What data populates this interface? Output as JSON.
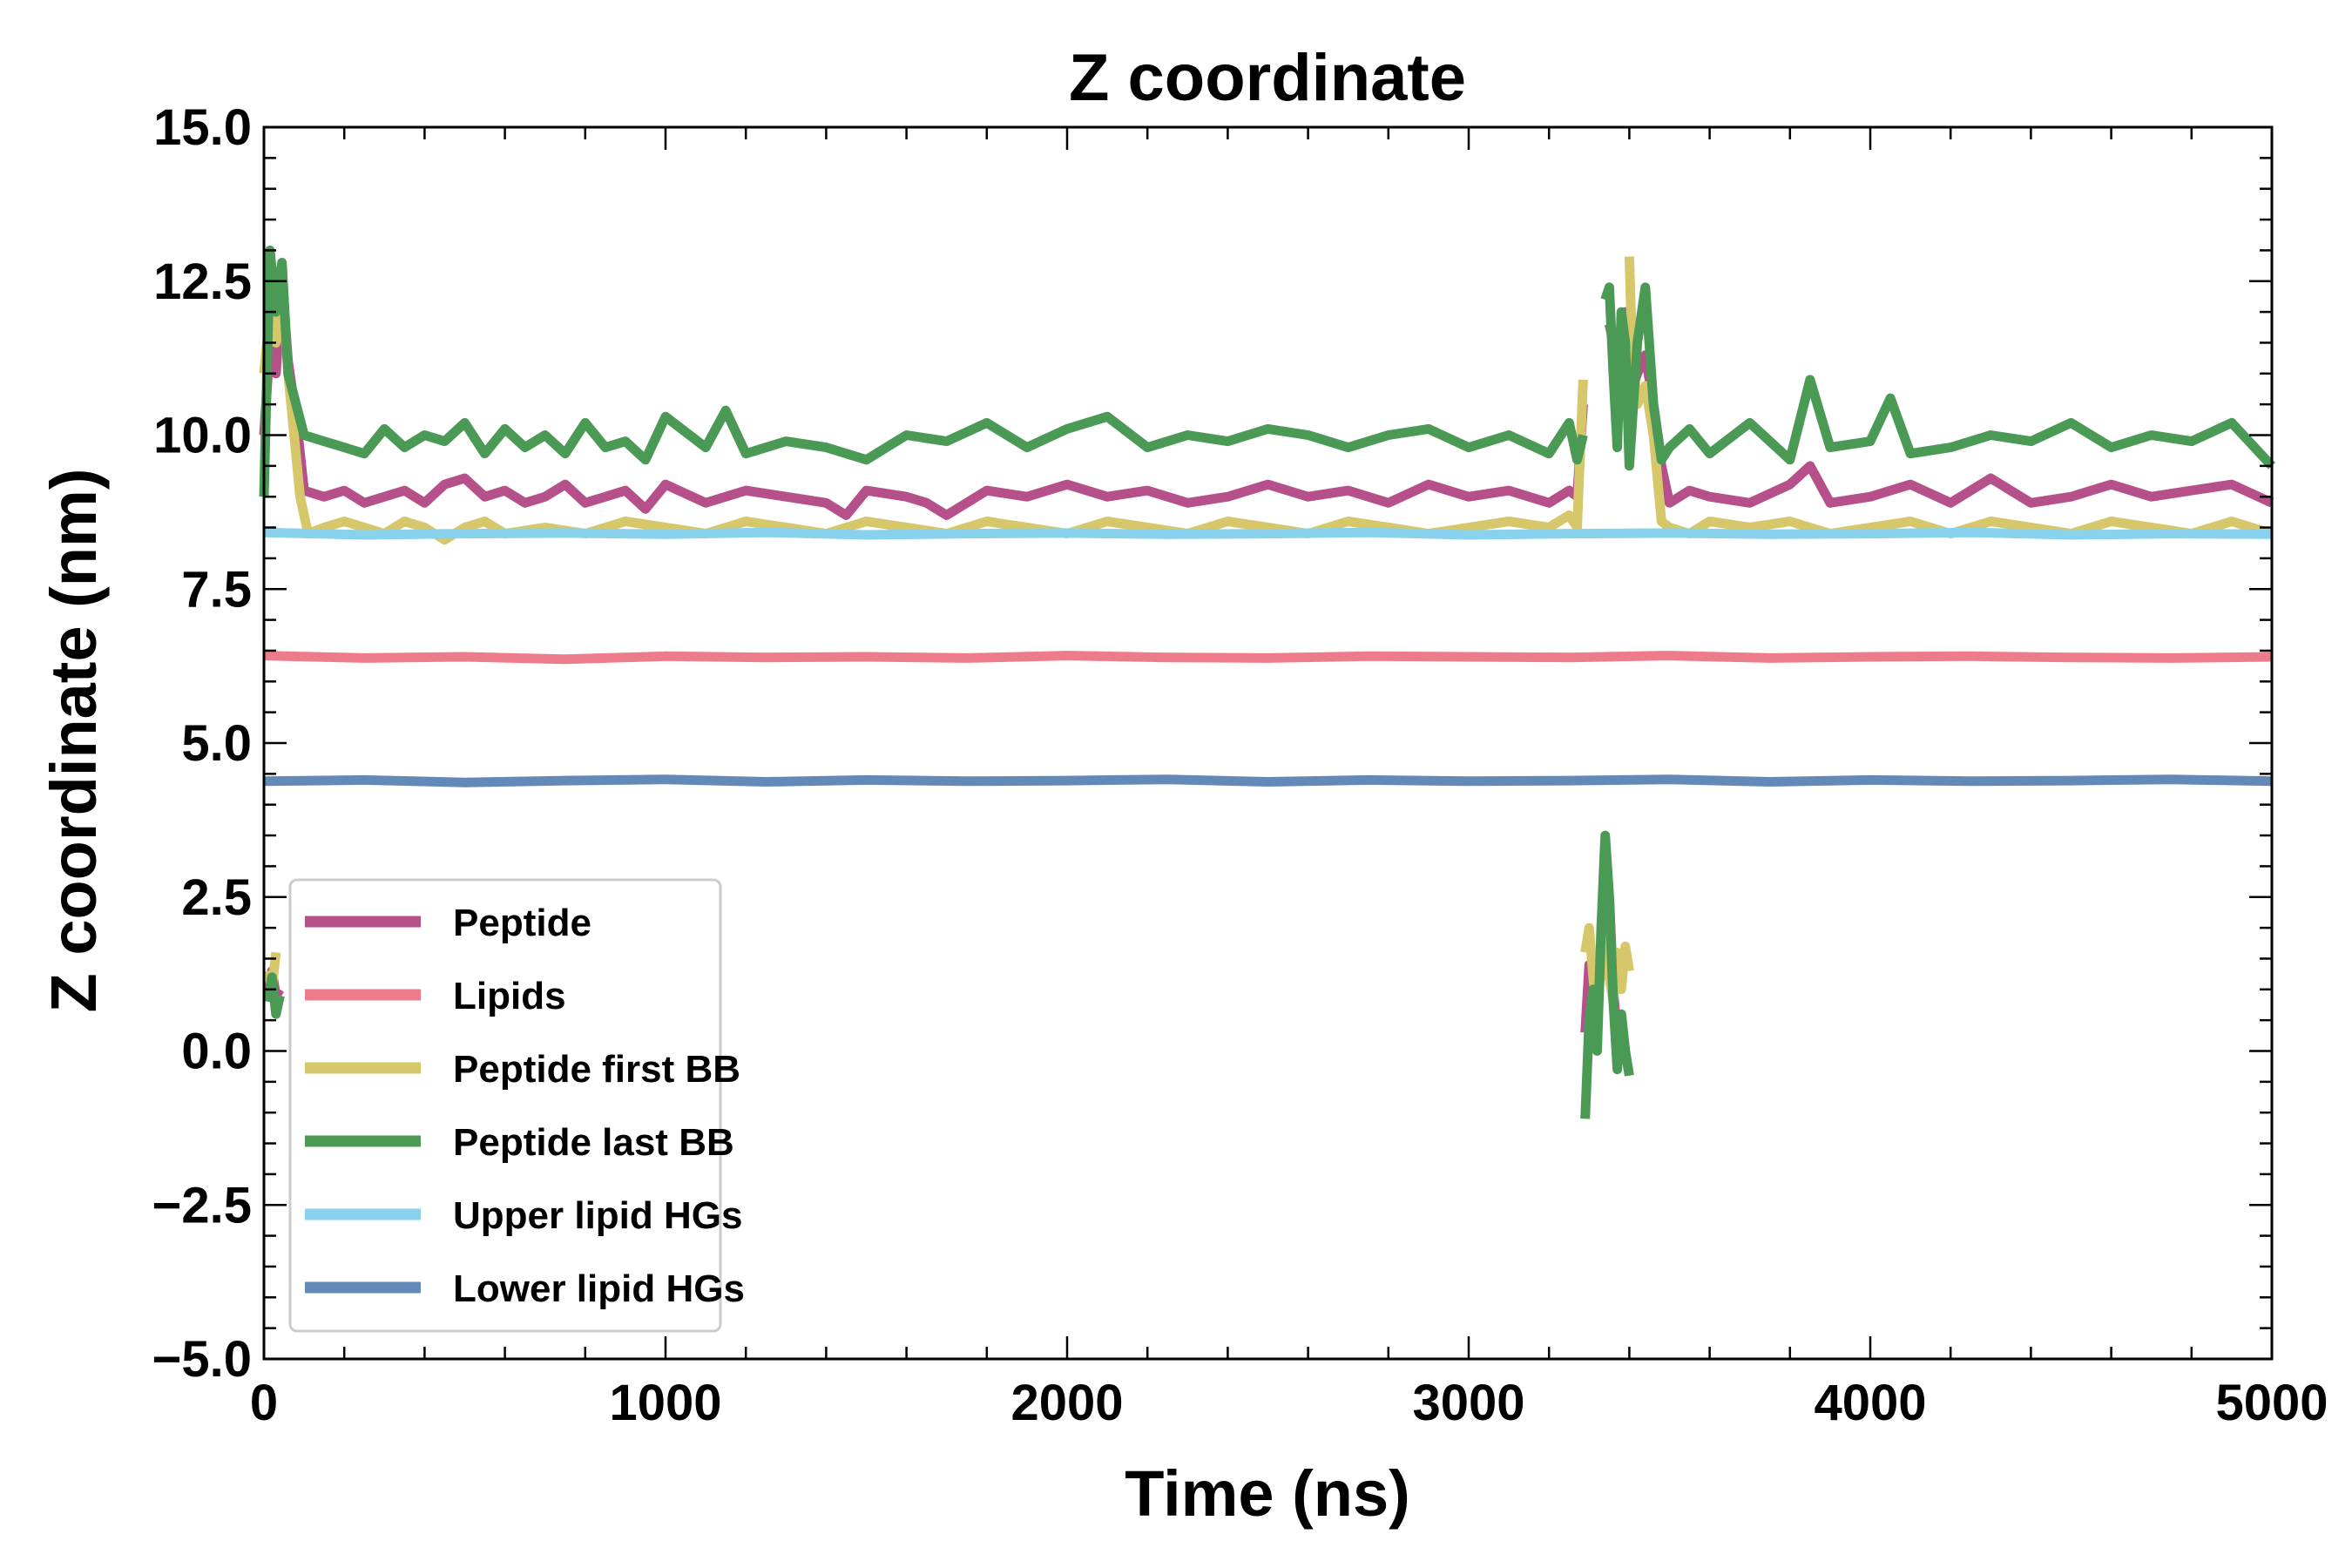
{
  "chart_data": {
    "type": "line",
    "title": "Z coordinate",
    "xlabel": "Time (ns)",
    "ylabel": "Z coordinate (nm)",
    "xlim": [
      0,
      5000
    ],
    "ylim": [
      -5.0,
      15.0
    ],
    "x_ticks": [
      0,
      1000,
      2000,
      3000,
      4000,
      5000
    ],
    "x_tick_labels": [
      "0",
      "1000",
      "2000",
      "3000",
      "4000",
      "5000"
    ],
    "y_ticks": [
      -5.0,
      -2.5,
      0.0,
      2.5,
      5.0,
      7.5,
      10.0,
      12.5,
      15.0
    ],
    "y_tick_labels": [
      "−5.0",
      "−2.5",
      "0.0",
      "2.5",
      "5.0",
      "7.5",
      "10.0",
      "12.5",
      "15.0"
    ],
    "grid": false,
    "legend_position": "lower-left",
    "series": [
      {
        "name": "Peptide",
        "color": "#b5508a",
        "segments": [
          {
            "x": [
              0,
              15,
              30,
              45,
              60,
              80,
              100,
              150,
              200,
              250,
              300,
              350,
              400,
              450,
              500,
              550,
              600,
              650,
              700,
              750,
              800,
              850,
              900,
              950,
              1000,
              1100,
              1200,
              1300,
              1400,
              1450,
              1500,
              1600,
              1650,
              1700,
              1800,
              1900,
              2000,
              2100,
              2200,
              2300,
              2400,
              2500,
              2600,
              2700,
              2800,
              2900,
              3000,
              3100,
              3200,
              3250,
              3270,
              3285
            ],
            "y": [
              10.0,
              11.5,
              11.0,
              12.5,
              11.2,
              10.3,
              9.1,
              9.0,
              9.1,
              8.9,
              9.0,
              9.1,
              8.9,
              9.2,
              9.3,
              9.0,
              9.1,
              8.9,
              9.0,
              9.2,
              8.9,
              9.0,
              9.1,
              8.8,
              9.2,
              8.9,
              9.1,
              9.0,
              8.9,
              8.7,
              9.1,
              9.0,
              8.9,
              8.7,
              9.1,
              9.0,
              9.2,
              9.0,
              9.1,
              8.9,
              9.0,
              9.2,
              9.0,
              9.1,
              8.9,
              9.2,
              9.0,
              9.1,
              8.9,
              9.1,
              9.0,
              10.5
            ]
          },
          {
            "x": [
              3350,
              3360,
              3370,
              3380,
              3390,
              3400,
              3410,
              3420,
              3440,
              3460,
              3480,
              3500,
              3550,
              3600,
              3700,
              3800,
              3850,
              3900,
              4000,
              4100,
              4200,
              4300,
              4400,
              4500,
              4600,
              4700,
              4800,
              4900,
              5000
            ],
            "y": [
              11.8,
              11.5,
              11.0,
              10.5,
              12.0,
              11.2,
              10.8,
              11.0,
              11.3,
              10.5,
              9.5,
              8.9,
              9.1,
              9.0,
              8.9,
              9.2,
              9.5,
              8.9,
              9.0,
              9.2,
              8.9,
              9.3,
              8.9,
              9.0,
              9.2,
              9.0,
              9.1,
              9.2,
              8.9
            ]
          },
          {
            "x": [
              10,
              20,
              30,
              40
            ],
            "y": [
              1.0,
              1.3,
              0.9,
              1.0
            ]
          },
          {
            "x": [
              3290,
              3300,
              3310,
              3320,
              3330,
              3340,
              3350,
              3360,
              3370,
              3380
            ],
            "y": [
              0.3,
              1.4,
              0.9,
              0.7,
              1.5,
              2.0,
              2.5,
              1.0,
              0.2,
              0.5
            ]
          }
        ]
      },
      {
        "name": "Lipids",
        "color": "#ee7b8a",
        "segments": [
          {
            "x": [
              0,
              250,
              500,
              750,
              1000,
              1250,
              1500,
              1750,
              2000,
              2250,
              2500,
              2750,
              3000,
              3250,
              3500,
              3750,
              4000,
              4250,
              4500,
              4750,
              5000
            ],
            "y": [
              6.42,
              6.38,
              6.4,
              6.36,
              6.41,
              6.39,
              6.4,
              6.38,
              6.42,
              6.39,
              6.38,
              6.41,
              6.4,
              6.39,
              6.42,
              6.38,
              6.4,
              6.41,
              6.39,
              6.38,
              6.4
            ]
          }
        ]
      },
      {
        "name": "Peptide first BB",
        "color": "#d6c76a",
        "segments": [
          {
            "x": [
              0,
              15,
              30,
              45,
              60,
              75,
              90,
              110,
              150,
              200,
              250,
              300,
              350,
              400,
              450,
              500,
              550,
              600,
              700,
              800,
              900,
              1000,
              1100,
              1200,
              1300,
              1400,
              1500,
              1600,
              1700,
              1800,
              1900,
              2000,
              2100,
              2200,
              2300,
              2400,
              2500,
              2600,
              2700,
              2800,
              2900,
              3000,
              3100,
              3200,
              3250,
              3270,
              3285
            ],
            "y": [
              11.0,
              12.0,
              11.5,
              12.5,
              11.0,
              10.0,
              9.0,
              8.4,
              8.5,
              8.6,
              8.5,
              8.4,
              8.6,
              8.5,
              8.3,
              8.5,
              8.6,
              8.4,
              8.5,
              8.4,
              8.6,
              8.5,
              8.4,
              8.6,
              8.5,
              8.4,
              8.6,
              8.5,
              8.4,
              8.6,
              8.5,
              8.4,
              8.6,
              8.5,
              8.4,
              8.6,
              8.5,
              8.4,
              8.6,
              8.5,
              8.4,
              8.5,
              8.6,
              8.5,
              8.7,
              8.5,
              10.9
            ]
          },
          {
            "x": [
              3400,
              3405,
              3410,
              3420,
              3440,
              3460,
              3480,
              3500,
              3550,
              3600,
              3700,
              3800,
              3900,
              4000,
              4100,
              4200,
              4300,
              4400,
              4500,
              4600,
              4700,
              4800,
              4900,
              5000
            ],
            "y": [
              12.9,
              11.8,
              11.2,
              10.5,
              10.8,
              10.0,
              8.6,
              8.5,
              8.4,
              8.6,
              8.5,
              8.6,
              8.4,
              8.5,
              8.6,
              8.4,
              8.6,
              8.5,
              8.4,
              8.6,
              8.5,
              8.4,
              8.6,
              8.4
            ]
          },
          {
            "x": [
              10,
              20,
              30
            ],
            "y": [
              1.3,
              1.0,
              1.6
            ]
          },
          {
            "x": [
              3290,
              3300,
              3310,
              3320,
              3330,
              3340,
              3350,
              3360,
              3370,
              3380,
              3390,
              3400
            ],
            "y": [
              1.6,
              2.0,
              1.2,
              0.5,
              1.5,
              1.8,
              1.2,
              0.8,
              1.6,
              1.0,
              1.7,
              1.3
            ]
          }
        ]
      },
      {
        "name": "Peptide last BB",
        "color": "#4a9a55",
        "segments": [
          {
            "x": [
              0,
              15,
              30,
              45,
              60,
              80,
              100,
              150,
              200,
              250,
              300,
              350,
              400,
              450,
              500,
              550,
              600,
              650,
              700,
              750,
              800,
              850,
              900,
              950,
              1000,
              1100,
              1150,
              1200,
              1300,
              1400,
              1500,
              1600,
              1700,
              1800,
              1900,
              2000,
              2100,
              2200,
              2300,
              2400,
              2500,
              2600,
              2700,
              2800,
              2900,
              3000,
              3100,
              3200,
              3250,
              3270,
              3285
            ],
            "y": [
              9.0,
              13.0,
              12.0,
              12.8,
              11.0,
              10.5,
              10.0,
              9.9,
              9.8,
              9.7,
              10.1,
              9.8,
              10.0,
              9.9,
              10.2,
              9.7,
              10.1,
              9.8,
              10.0,
              9.7,
              10.2,
              9.8,
              9.9,
              9.6,
              10.3,
              9.8,
              10.4,
              9.7,
              9.9,
              9.8,
              9.6,
              10.0,
              9.9,
              10.2,
              9.8,
              10.1,
              10.3,
              9.8,
              10.0,
              9.9,
              10.1,
              10.0,
              9.8,
              10.0,
              10.1,
              9.8,
              10.0,
              9.7,
              10.2,
              9.6,
              10.0
            ]
          },
          {
            "x": [
              3340,
              3350,
              3360,
              3370,
              3380,
              3390,
              3400,
              3420,
              3440,
              3460,
              3480,
              3500,
              3550,
              3600,
              3700,
              3800,
              3850,
              3900,
              4000,
              4050,
              4100,
              4200,
              4300,
              4400,
              4500,
              4600,
              4700,
              4800,
              4900,
              5000
            ],
            "y": [
              12.2,
              12.4,
              11.0,
              9.8,
              12.0,
              11.5,
              9.5,
              11.5,
              12.4,
              10.5,
              9.6,
              9.8,
              10.1,
              9.7,
              10.2,
              9.6,
              10.9,
              9.8,
              9.9,
              10.6,
              9.7,
              9.8,
              10.0,
              9.9,
              10.2,
              9.8,
              10.0,
              9.9,
              10.2,
              9.5
            ]
          },
          {
            "x": [
              10,
              20,
              30,
              40
            ],
            "y": [
              0.8,
              1.2,
              0.6,
              0.9
            ]
          },
          {
            "x": [
              3290,
              3300,
              3310,
              3320,
              3330,
              3340,
              3350,
              3360,
              3370,
              3380,
              3390,
              3400
            ],
            "y": [
              -1.1,
              0.5,
              1.0,
              0.0,
              2.0,
              3.5,
              2.5,
              0.8,
              -0.3,
              0.6,
              0.0,
              -0.4
            ]
          }
        ]
      },
      {
        "name": "Upper lipid HGs",
        "color": "#88d2ee",
        "segments": [
          {
            "x": [
              0,
              250,
              500,
              750,
              1000,
              1250,
              1500,
              1750,
              2000,
              2250,
              2500,
              2750,
              3000,
              3250,
              3500,
              3750,
              4000,
              4250,
              4500,
              4750,
              5000
            ],
            "y": [
              8.42,
              8.38,
              8.4,
              8.41,
              8.39,
              8.42,
              8.38,
              8.4,
              8.41,
              8.39,
              8.4,
              8.42,
              8.38,
              8.4,
              8.41,
              8.39,
              8.4,
              8.42,
              8.38,
              8.4,
              8.39
            ]
          }
        ]
      },
      {
        "name": "Lower lipid HGs",
        "color": "#6389b8",
        "segments": [
          {
            "x": [
              0,
              250,
              500,
              750,
              1000,
              1250,
              1500,
              1750,
              2000,
              2250,
              2500,
              2750,
              3000,
              3250,
              3500,
              3750,
              4000,
              4250,
              4500,
              4750,
              5000
            ],
            "y": [
              4.38,
              4.4,
              4.36,
              4.39,
              4.41,
              4.37,
              4.4,
              4.38,
              4.39,
              4.41,
              4.37,
              4.4,
              4.38,
              4.39,
              4.41,
              4.37,
              4.4,
              4.38,
              4.39,
              4.41,
              4.38
            ]
          }
        ]
      }
    ]
  }
}
